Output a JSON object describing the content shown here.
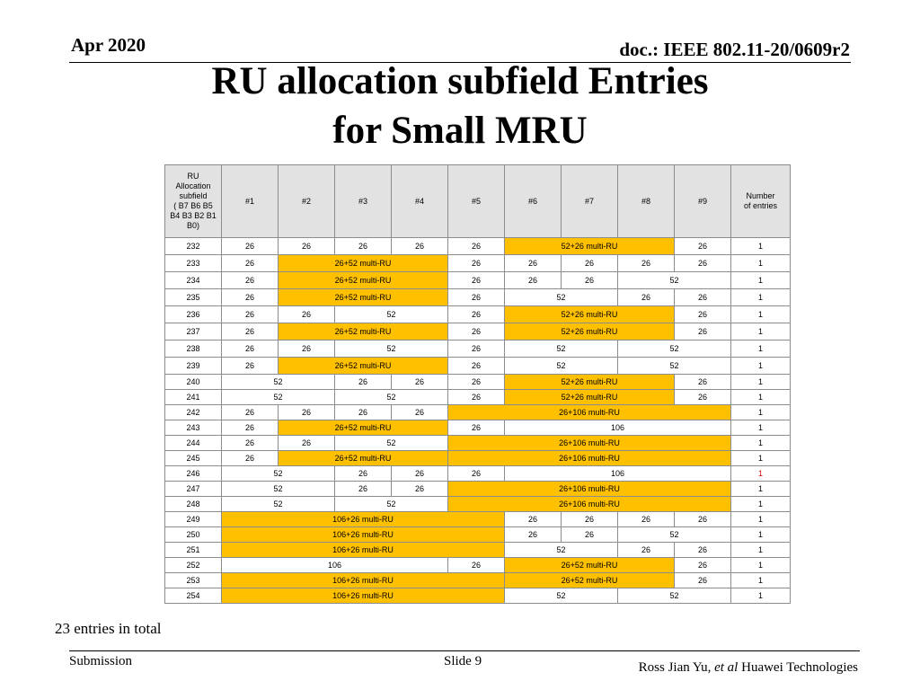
{
  "header": {
    "date": "Apr 2020",
    "doc": "doc.: IEEE 802.11-20/0609r2"
  },
  "title": {
    "line1": "RU allocation subfield Entries",
    "line2": "for Small MRU"
  },
  "colors": {
    "highlight": "#ffc000",
    "header_fill": "#e2e2e2",
    "alert_red": "#e00000"
  },
  "table": {
    "header": {
      "first_lines": [
        "RU",
        "Allocation",
        "subfield",
        "( B7 B6 B5",
        "B4 B3 B2 B1",
        "B0)"
      ],
      "cols": [
        "#1",
        "#2",
        "#3",
        "#4",
        "#5",
        "#6",
        "#7",
        "#8",
        "#9"
      ],
      "last_lines": [
        "Number",
        "of entries"
      ]
    },
    "rows": [
      {
        "sub": "232",
        "h": 20,
        "cells": [
          {
            "t": "26",
            "s": 1
          },
          {
            "t": "26",
            "s": 1
          },
          {
            "t": "26",
            "s": 1
          },
          {
            "t": "26",
            "s": 1
          },
          {
            "t": "26",
            "s": 1
          },
          {
            "t": "52+26 multi-RU",
            "s": 3,
            "hl": true
          },
          {
            "t": "26",
            "s": 1
          }
        ],
        "entries": "1"
      },
      {
        "sub": "233",
        "h": 20,
        "cells": [
          {
            "t": "26",
            "s": 1
          },
          {
            "t": "26+52 multi-RU",
            "s": 3,
            "hl": true
          },
          {
            "t": "26",
            "s": 1
          },
          {
            "t": "26",
            "s": 1
          },
          {
            "t": "26",
            "s": 1
          },
          {
            "t": "26",
            "s": 1
          },
          {
            "t": "26",
            "s": 1
          }
        ],
        "entries": "1"
      },
      {
        "sub": "234",
        "h": 20,
        "cells": [
          {
            "t": "26",
            "s": 1
          },
          {
            "t": "26+52 multi-RU",
            "s": 3,
            "hl": true
          },
          {
            "t": "26",
            "s": 1
          },
          {
            "t": "26",
            "s": 1
          },
          {
            "t": "26",
            "s": 1
          },
          {
            "t": "52",
            "s": 2
          }
        ],
        "entries": "1"
      },
      {
        "sub": "235",
        "h": 20,
        "cells": [
          {
            "t": "26",
            "s": 1
          },
          {
            "t": "26+52 multi-RU",
            "s": 3,
            "hl": true
          },
          {
            "t": "26",
            "s": 1
          },
          {
            "t": "52",
            "s": 2
          },
          {
            "t": "26",
            "s": 1
          },
          {
            "t": "26",
            "s": 1
          }
        ],
        "entries": "1"
      },
      {
        "sub": "236",
        "h": 20,
        "cells": [
          {
            "t": "26",
            "s": 1
          },
          {
            "t": "26",
            "s": 1
          },
          {
            "t": "52",
            "s": 2
          },
          {
            "t": "26",
            "s": 1
          },
          {
            "t": "52+26 multi-RU",
            "s": 3,
            "hl": true
          },
          {
            "t": "26",
            "s": 1
          }
        ],
        "entries": "1"
      },
      {
        "sub": "237",
        "h": 20,
        "cells": [
          {
            "t": "26",
            "s": 1
          },
          {
            "t": "26+52 multi-RU",
            "s": 3,
            "hl": true
          },
          {
            "t": "26",
            "s": 1
          },
          {
            "t": "52+26 multi-RU",
            "s": 3,
            "hl": true
          },
          {
            "t": "26",
            "s": 1
          }
        ],
        "entries": "1"
      },
      {
        "sub": "238",
        "h": 20,
        "cells": [
          {
            "t": "26",
            "s": 1
          },
          {
            "t": "26",
            "s": 1
          },
          {
            "t": "52",
            "s": 2
          },
          {
            "t": "26",
            "s": 1
          },
          {
            "t": "52",
            "s": 2
          },
          {
            "t": "52",
            "s": 2
          }
        ],
        "entries": "1"
      },
      {
        "sub": "239",
        "h": 20,
        "cells": [
          {
            "t": "26",
            "s": 1
          },
          {
            "t": "26+52 multi-RU",
            "s": 3,
            "hl": true
          },
          {
            "t": "26",
            "s": 1
          },
          {
            "t": "52",
            "s": 2
          },
          {
            "t": "52",
            "s": 2
          }
        ],
        "entries": "1"
      },
      {
        "sub": "240",
        "h": 17,
        "cells": [
          {
            "t": "52",
            "s": 2
          },
          {
            "t": "26",
            "s": 1
          },
          {
            "t": "26",
            "s": 1
          },
          {
            "t": "26",
            "s": 1
          },
          {
            "t": "52+26 multi-RU",
            "s": 3,
            "hl": true
          },
          {
            "t": "26",
            "s": 1
          }
        ],
        "entries": "1"
      },
      {
        "sub": "241",
        "h": 17,
        "cells": [
          {
            "t": "52",
            "s": 2
          },
          {
            "t": "52",
            "s": 2
          },
          {
            "t": "26",
            "s": 1
          },
          {
            "t": "52+26 multi-RU",
            "s": 3,
            "hl": true
          },
          {
            "t": "26",
            "s": 1
          }
        ],
        "entries": "1"
      },
      {
        "sub": "242",
        "h": 17,
        "cells": [
          {
            "t": "26",
            "s": 1
          },
          {
            "t": "26",
            "s": 1
          },
          {
            "t": "26",
            "s": 1
          },
          {
            "t": "26",
            "s": 1
          },
          {
            "t": "26+106 multi-RU",
            "s": 5,
            "hl": true
          }
        ],
        "entries": "1"
      },
      {
        "sub": "243",
        "h": 17,
        "cells": [
          {
            "t": "26",
            "s": 1
          },
          {
            "t": "26+52 multi-RU",
            "s": 3,
            "hl": true
          },
          {
            "t": "26",
            "s": 1
          },
          {
            "t": "106",
            "s": 4
          }
        ],
        "entries": "1"
      },
      {
        "sub": "244",
        "h": 17,
        "cells": [
          {
            "t": "26",
            "s": 1
          },
          {
            "t": "26",
            "s": 1
          },
          {
            "t": "52",
            "s": 2
          },
          {
            "t": "26+106 multi-RU",
            "s": 5,
            "hl": true
          }
        ],
        "entries": "1"
      },
      {
        "sub": "245",
        "h": 17,
        "cells": [
          {
            "t": "26",
            "s": 1
          },
          {
            "t": "26+52 multi-RU",
            "s": 3,
            "hl": true
          },
          {
            "t": "26+106 multi-RU",
            "s": 5,
            "hl": true
          }
        ],
        "entries": "1"
      },
      {
        "sub": "246",
        "h": 17,
        "cells": [
          {
            "t": "52",
            "s": 2
          },
          {
            "t": "26",
            "s": 1
          },
          {
            "t": "26",
            "s": 1
          },
          {
            "t": "26",
            "s": 1
          },
          {
            "t": "106",
            "s": 4
          }
        ],
        "entries": "1",
        "entriesRed": true
      },
      {
        "sub": "247",
        "h": 17,
        "cells": [
          {
            "t": "52",
            "s": 2
          },
          {
            "t": "26",
            "s": 1
          },
          {
            "t": "26",
            "s": 1
          },
          {
            "t": "26+106 multi-RU",
            "s": 5,
            "hl": true
          }
        ],
        "entries": "1"
      },
      {
        "sub": "248",
        "h": 17,
        "cells": [
          {
            "t": "52",
            "s": 2
          },
          {
            "t": "52",
            "s": 2
          },
          {
            "t": "26+106 multi-RU",
            "s": 5,
            "hl": true
          }
        ],
        "entries": "1"
      },
      {
        "sub": "249",
        "h": 17,
        "cells": [
          {
            "t": "106+26 multi-RU",
            "s": 5,
            "hl": true
          },
          {
            "t": "26",
            "s": 1
          },
          {
            "t": "26",
            "s": 1
          },
          {
            "t": "26",
            "s": 1
          },
          {
            "t": "26",
            "s": 1
          }
        ],
        "entries": "1"
      },
      {
        "sub": "250",
        "h": 17,
        "cells": [
          {
            "t": "106+26 multi-RU",
            "s": 5,
            "hl": true
          },
          {
            "t": "26",
            "s": 1
          },
          {
            "t": "26",
            "s": 1
          },
          {
            "t": "52",
            "s": 2
          }
        ],
        "entries": "1"
      },
      {
        "sub": "251",
        "h": 17,
        "cells": [
          {
            "t": "106+26 multi-RU",
            "s": 5,
            "hl": true
          },
          {
            "t": "52",
            "s": 2
          },
          {
            "t": "26",
            "s": 1
          },
          {
            "t": "26",
            "s": 1
          }
        ],
        "entries": "1"
      },
      {
        "sub": "252",
        "h": 17,
        "cells": [
          {
            "t": "106",
            "s": 4
          },
          {
            "t": "26",
            "s": 1
          },
          {
            "t": "26+52 multi-RU",
            "s": 3,
            "hl": true
          },
          {
            "t": "26",
            "s": 1
          }
        ],
        "entries": "1"
      },
      {
        "sub": "253",
        "h": 17,
        "cells": [
          {
            "t": "106+26 multi-RU",
            "s": 5,
            "hl": true
          },
          {
            "t": "26+52 multi-RU",
            "s": 3,
            "hl": true
          },
          {
            "t": "26",
            "s": 1
          }
        ],
        "entries": "1"
      },
      {
        "sub": "254",
        "h": 17,
        "cells": [
          {
            "t": "106+26 multi-RU",
            "s": 5,
            "hl": true
          },
          {
            "t": "52",
            "s": 2
          },
          {
            "t": "52",
            "s": 2
          }
        ],
        "entries": "1"
      }
    ]
  },
  "note": "23 entries in total",
  "footer": {
    "left": "Submission",
    "center": "Slide 9",
    "right_name": "Ross Jian Yu, ",
    "right_etal": "et al",
    "right_org": " Huawei Technologies"
  }
}
